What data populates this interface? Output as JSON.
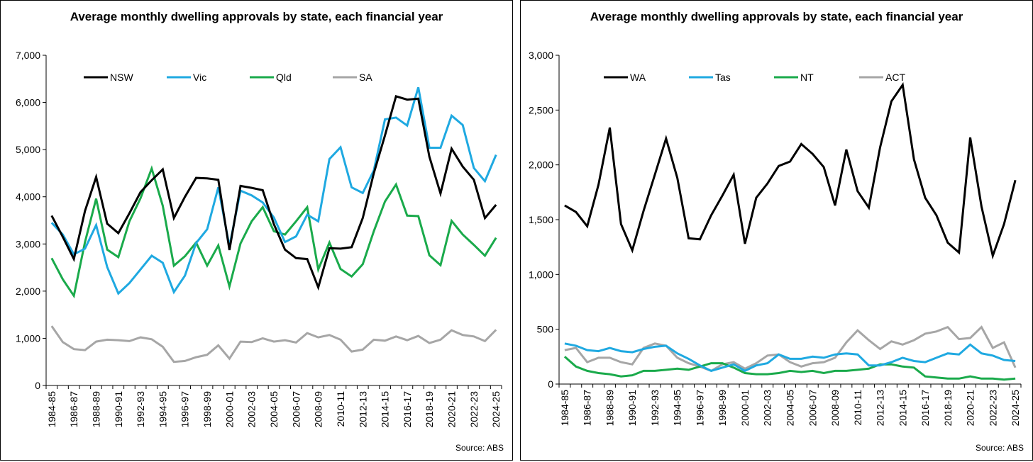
{
  "charts": [
    {
      "title": "Average monthly dwelling approvals by state, each financial year",
      "source": "Source: ABS",
      "chart_data": {
        "type": "line",
        "title": "Average monthly dwelling approvals by state, each financial year",
        "xlabel": "",
        "ylabel": "",
        "ylim": [
          0,
          7000
        ],
        "yticks": [
          0,
          1000,
          2000,
          3000,
          4000,
          5000,
          6000,
          7000
        ],
        "ytick_labels": [
          "0",
          "1,000",
          "2,000",
          "3,000",
          "4,000",
          "5,000",
          "6,000",
          "7,000"
        ],
        "grid": false,
        "legend": "top-left",
        "categories": [
          "1984-85",
          "1985-86",
          "1986-87",
          "1987-88",
          "1988-89",
          "1989-90",
          "1990-91",
          "1991-92",
          "1992-93",
          "1993-94",
          "1994-95",
          "1995-96",
          "1996-97",
          "1997-98",
          "1998-99",
          "1999-00",
          "2000-01",
          "2001-02",
          "2002-03",
          "2003-04",
          "2004-05",
          "2005-06",
          "2006-07",
          "2007-08",
          "2008-09",
          "2009-10",
          "2010-11",
          "2011-12",
          "2012-13",
          "2013-14",
          "2014-15",
          "2015-16",
          "2016-17",
          "2017-18",
          "2018-19",
          "2019-20",
          "2020-21",
          "2021-22",
          "2022-23",
          "2023-24",
          "2024-25"
        ],
        "tick_labels": [
          "1984-85",
          "1986-87",
          "1988-89",
          "1990-91",
          "1992-93",
          "1994-95",
          "1996-97",
          "1998-99",
          "2000-01",
          "2002-03",
          "2004-05",
          "2006-07",
          "2008-09",
          "2010-11",
          "2012-13",
          "2014-15",
          "2016-17",
          "2018-19",
          "2020-21",
          "2022-23",
          "2024-25"
        ],
        "series": [
          {
            "name": "NSW",
            "color": "#000000",
            "values": [
              3600,
              3150,
              2680,
              3700,
              4420,
              3430,
              3230,
              3650,
              4100,
              4350,
              4580,
              3550,
              4000,
              4400,
              4390,
              4360,
              2870,
              4230,
              4190,
              4140,
              3420,
              2880,
              2700,
              2680,
              2080,
              2910,
              2900,
              2930,
              3550,
              4500,
              5300,
              6130,
              6060,
              6080,
              4850,
              4070,
              5020,
              4640,
              4360,
              3550,
              3830
            ]
          },
          {
            "name": "Vic",
            "color": "#1fa9e1",
            "values": [
              3450,
              3200,
              2780,
              2900,
              3400,
              2510,
              1950,
              2170,
              2460,
              2750,
              2600,
              1980,
              2330,
              3020,
              3310,
              4200,
              2950,
              4130,
              4030,
              3880,
              3560,
              3040,
              3160,
              3620,
              3480,
              4800,
              5050,
              4200,
              4080,
              4560,
              5640,
              5680,
              5510,
              6320,
              5040,
              5040,
              5720,
              5520,
              4610,
              4330,
              4890
            ]
          },
          {
            "name": "Qld",
            "color": "#1aaa4b",
            "values": [
              2700,
              2250,
              1900,
              3040,
              3960,
              2880,
              2720,
              3480,
              3970,
              4600,
              3810,
              2540,
              2740,
              3030,
              2540,
              2970,
              2100,
              3010,
              3480,
              3780,
              3270,
              3200,
              3480,
              3780,
              2460,
              3030,
              2470,
              2310,
              2570,
              3270,
              3900,
              4260,
              3600,
              3590,
              2760,
              2550,
              3490,
              3200,
              2980,
              2750,
              3130
            ]
          },
          {
            "name": "SA",
            "color": "#a6a6a6",
            "values": [
              1260,
              920,
              770,
              750,
              930,
              970,
              960,
              940,
              1020,
              980,
              820,
              500,
              520,
              600,
              650,
              850,
              570,
              930,
              920,
              1000,
              930,
              960,
              910,
              1110,
              1020,
              1070,
              970,
              720,
              760,
              970,
              950,
              1040,
              960,
              1050,
              900,
              970,
              1170,
              1070,
              1040,
              940,
              1180
            ]
          }
        ]
      }
    },
    {
      "title": "Average monthly dwelling approvals by state, each financial year",
      "source": "Source: ABS",
      "chart_data": {
        "type": "line",
        "title": "Average monthly dwelling approvals by state, each financial year",
        "xlabel": "",
        "ylabel": "",
        "ylim": [
          0,
          3000
        ],
        "yticks": [
          0,
          500,
          1000,
          1500,
          2000,
          2500,
          3000
        ],
        "ytick_labels": [
          "0",
          "500",
          "1,000",
          "1,500",
          "2,000",
          "2,500",
          "3,000"
        ],
        "grid": false,
        "legend": "top-left",
        "categories": [
          "1984-85",
          "1985-86",
          "1986-87",
          "1987-88",
          "1988-89",
          "1989-90",
          "1990-91",
          "1991-92",
          "1992-93",
          "1993-94",
          "1994-95",
          "1995-96",
          "1996-97",
          "1997-98",
          "1998-99",
          "1999-00",
          "2000-01",
          "2001-02",
          "2002-03",
          "2003-04",
          "2004-05",
          "2005-06",
          "2006-07",
          "2007-08",
          "2008-09",
          "2009-10",
          "2010-11",
          "2011-12",
          "2012-13",
          "2013-14",
          "2014-15",
          "2015-16",
          "2016-17",
          "2017-18",
          "2018-19",
          "2019-20",
          "2020-21",
          "2021-22",
          "2022-23",
          "2023-24",
          "2024-25"
        ],
        "tick_labels": [
          "1984-85",
          "1986-87",
          "1988-89",
          "1990-91",
          "1992-93",
          "1994-95",
          "1996-97",
          "1998-99",
          "2000-01",
          "2002-03",
          "2004-05",
          "2006-07",
          "2008-09",
          "2010-11",
          "2012-13",
          "2014-15",
          "2016-17",
          "2018-19",
          "2020-21",
          "2022-23",
          "2024-25"
        ],
        "series": [
          {
            "name": "WA",
            "color": "#000000",
            "values": [
              1630,
              1570,
              1440,
              1820,
              2340,
              1460,
              1220,
              1580,
              1910,
              2240,
              1880,
              1330,
              1320,
              1540,
              1720,
              1910,
              1280,
              1700,
              1830,
              1990,
              2030,
              2190,
              2100,
              1980,
              1630,
              2140,
              1760,
              1610,
              2160,
              2580,
              2730,
              2050,
              1700,
              1540,
              1290,
              1200,
              2250,
              1620,
              1170,
              1460,
              1860
            ]
          },
          {
            "name": "Tas",
            "color": "#1fa9e1",
            "values": [
              370,
              350,
              310,
              300,
              330,
              300,
              290,
              320,
              340,
              350,
              280,
              230,
              170,
              120,
              150,
              180,
              120,
              170,
              190,
              270,
              230,
              230,
              250,
              240,
              270,
              280,
              270,
              170,
              170,
              200,
              240,
              210,
              200,
              240,
              280,
              270,
              360,
              280,
              260,
              220,
              210
            ]
          },
          {
            "name": "NT",
            "color": "#1aaa4b",
            "values": [
              250,
              160,
              120,
              100,
              90,
              70,
              80,
              120,
              120,
              130,
              140,
              130,
              160,
              190,
              190,
              150,
              100,
              90,
              90,
              100,
              120,
              110,
              120,
              100,
              120,
              120,
              130,
              140,
              180,
              180,
              160,
              150,
              70,
              60,
              50,
              50,
              70,
              50,
              50,
              40,
              50
            ]
          },
          {
            "name": "ACT",
            "color": "#a6a6a6",
            "values": [
              310,
              330,
              200,
              240,
              240,
              200,
              180,
              330,
              370,
              350,
              240,
              190,
              160,
              120,
              180,
              200,
              140,
              190,
              260,
              270,
              200,
              160,
              190,
              200,
              240,
              380,
              490,
              400,
              320,
              390,
              360,
              400,
              460,
              480,
              520,
              410,
              420,
              520,
              330,
              380,
              150
            ]
          }
        ]
      }
    }
  ]
}
